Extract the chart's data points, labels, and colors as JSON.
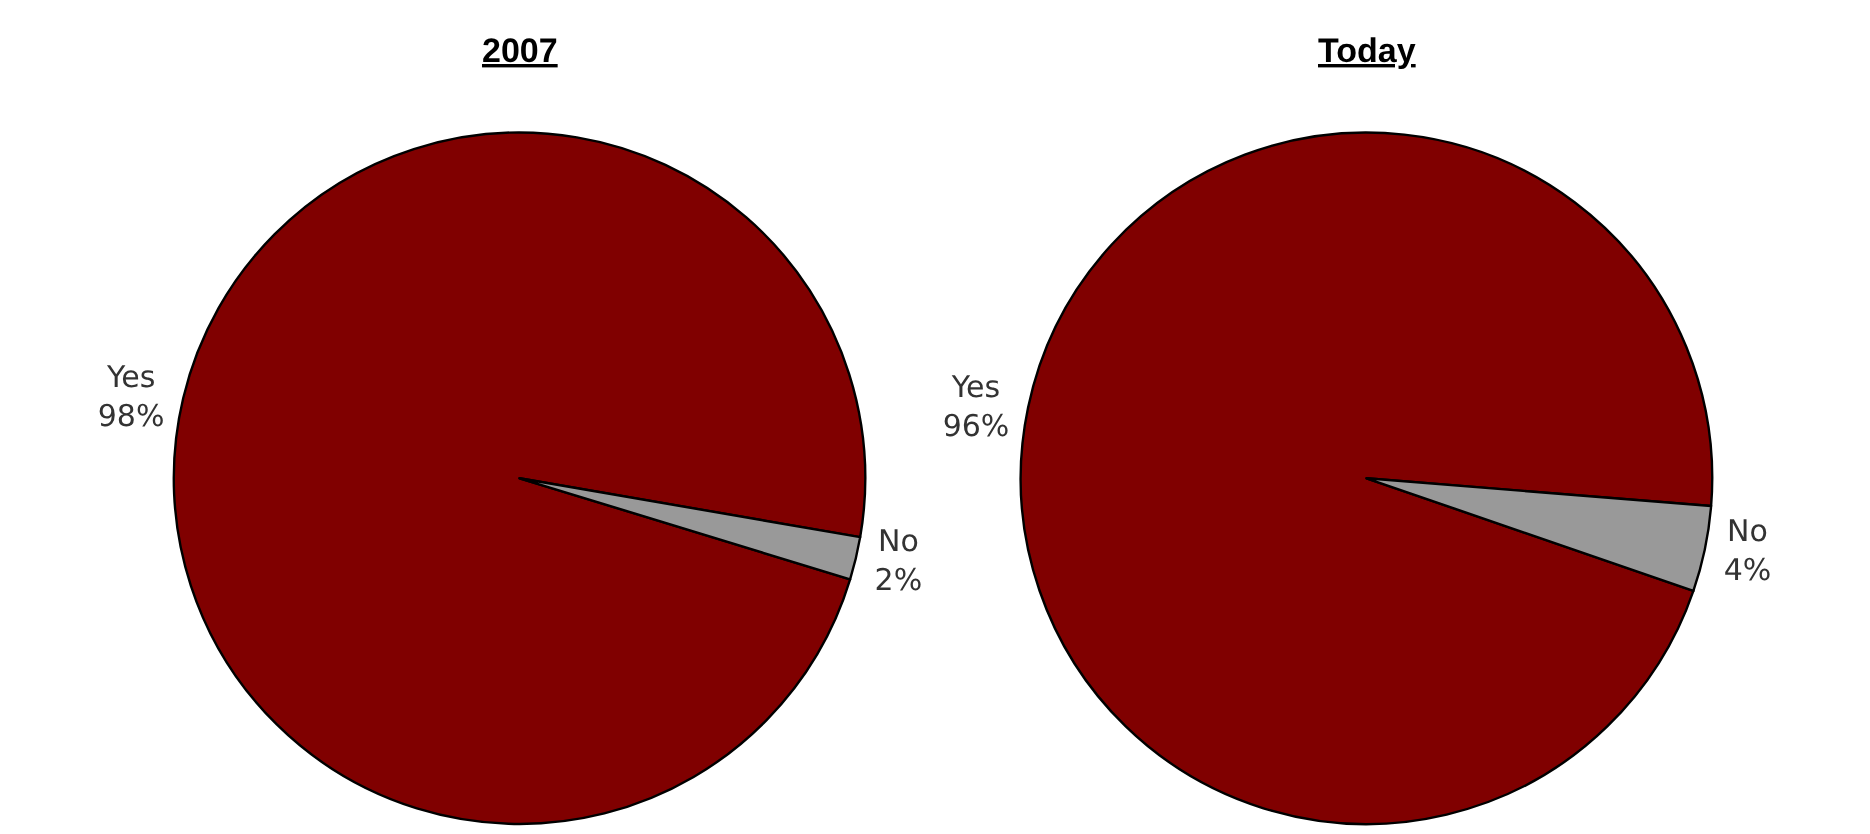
{
  "chart_data": [
    {
      "type": "pie",
      "title": "2007",
      "categories": [
        "Yes",
        "No"
      ],
      "values": [
        98,
        2
      ],
      "value_labels": [
        "98%",
        "2%"
      ],
      "colors": [
        "#800000",
        "#999999"
      ],
      "legend": false
    },
    {
      "type": "pie",
      "title": "Today",
      "categories": [
        "Yes",
        "No"
      ],
      "values": [
        96,
        4
      ],
      "value_labels": [
        "96%",
        "4%"
      ],
      "colors": [
        "#800000",
        "#999999"
      ],
      "legend": false
    }
  ]
}
